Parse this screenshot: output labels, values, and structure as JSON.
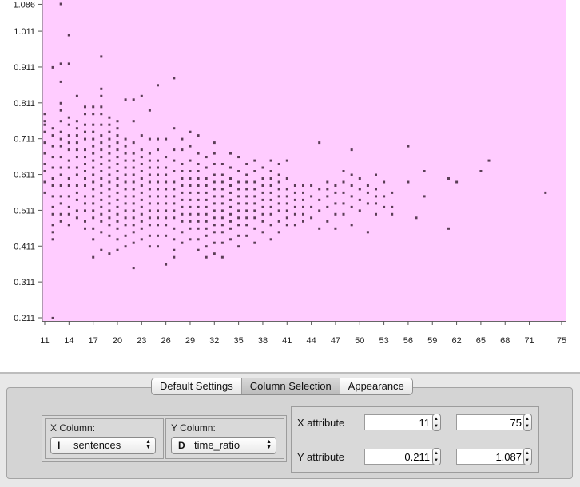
{
  "chart_data": {
    "type": "scatter",
    "title": "",
    "xlabel": "",
    "ylabel": "",
    "xlim": [
      11,
      75
    ],
    "ylim": [
      0.211,
      1.087
    ],
    "x_ticks": [
      "11",
      "14",
      "17",
      "20",
      "23",
      "26",
      "29",
      "32",
      "35",
      "38",
      "41",
      "44",
      "47",
      "50",
      "53",
      "56",
      "59",
      "62",
      "65",
      "68",
      "71",
      "75"
    ],
    "y_ticks": [
      "0.211",
      "0.311",
      "0.411",
      "0.511",
      "0.611",
      "0.711",
      "0.811",
      "0.911",
      "1.011",
      "1.086"
    ],
    "background_color": "#ffccff",
    "point_color": "#5a3d55",
    "grid": false,
    "columns": [
      {
        "x": 11,
        "y": [
          0.56,
          0.59,
          0.62,
          0.64,
          0.67,
          0.7,
          0.73,
          0.75,
          0.76,
          0.78
        ]
      },
      {
        "x": 12,
        "y": [
          0.21,
          0.43,
          0.45,
          0.47,
          0.5,
          0.52,
          0.55,
          0.58,
          0.6,
          0.63,
          0.66,
          0.69,
          0.72,
          0.74,
          0.91
        ]
      },
      {
        "x": 13,
        "y": [
          0.48,
          0.5,
          0.53,
          0.55,
          0.58,
          0.61,
          0.63,
          0.66,
          0.69,
          0.71,
          0.73,
          0.76,
          0.79,
          0.81,
          0.87,
          0.92,
          1.087
        ]
      },
      {
        "x": 14,
        "y": [
          0.47,
          0.5,
          0.52,
          0.55,
          0.58,
          0.6,
          0.63,
          0.65,
          0.68,
          0.7,
          0.72,
          0.75,
          0.77,
          0.92,
          1.0
        ]
      },
      {
        "x": 15,
        "y": [
          0.49,
          0.51,
          0.54,
          0.56,
          0.58,
          0.61,
          0.63,
          0.66,
          0.68,
          0.7,
          0.72,
          0.74,
          0.76,
          0.83
        ]
      },
      {
        "x": 16,
        "y": [
          0.46,
          0.48,
          0.51,
          0.53,
          0.55,
          0.58,
          0.6,
          0.62,
          0.64,
          0.66,
          0.68,
          0.71,
          0.73,
          0.75,
          0.78,
          0.8
        ]
      },
      {
        "x": 17,
        "y": [
          0.38,
          0.43,
          0.46,
          0.49,
          0.51,
          0.53,
          0.55,
          0.57,
          0.59,
          0.61,
          0.63,
          0.65,
          0.67,
          0.69,
          0.71,
          0.73,
          0.75,
          0.78,
          0.8
        ]
      },
      {
        "x": 18,
        "y": [
          0.4,
          0.45,
          0.48,
          0.5,
          0.52,
          0.54,
          0.56,
          0.58,
          0.6,
          0.62,
          0.64,
          0.66,
          0.68,
          0.7,
          0.72,
          0.75,
          0.78,
          0.8,
          0.83,
          0.85,
          0.94
        ]
      },
      {
        "x": 19,
        "y": [
          0.39,
          0.44,
          0.47,
          0.49,
          0.51,
          0.53,
          0.55,
          0.57,
          0.59,
          0.61,
          0.63,
          0.65,
          0.67,
          0.69,
          0.71,
          0.73,
          0.75,
          0.77
        ]
      },
      {
        "x": 20,
        "y": [
          0.4,
          0.43,
          0.46,
          0.48,
          0.5,
          0.52,
          0.54,
          0.56,
          0.58,
          0.6,
          0.62,
          0.64,
          0.66,
          0.68,
          0.7,
          0.72,
          0.74,
          0.76
        ]
      },
      {
        "x": 21,
        "y": [
          0.41,
          0.44,
          0.47,
          0.49,
          0.51,
          0.53,
          0.55,
          0.57,
          0.59,
          0.61,
          0.63,
          0.65,
          0.67,
          0.69,
          0.71,
          0.82
        ]
      },
      {
        "x": 22,
        "y": [
          0.35,
          0.42,
          0.45,
          0.47,
          0.49,
          0.51,
          0.53,
          0.55,
          0.57,
          0.59,
          0.61,
          0.63,
          0.65,
          0.67,
          0.7,
          0.76,
          0.82
        ]
      },
      {
        "x": 23,
        "y": [
          0.43,
          0.46,
          0.48,
          0.5,
          0.52,
          0.54,
          0.56,
          0.58,
          0.6,
          0.62,
          0.64,
          0.66,
          0.68,
          0.72,
          0.83
        ]
      },
      {
        "x": 24,
        "y": [
          0.41,
          0.44,
          0.47,
          0.49,
          0.51,
          0.53,
          0.55,
          0.57,
          0.59,
          0.61,
          0.63,
          0.65,
          0.67,
          0.71,
          0.79
        ]
      },
      {
        "x": 25,
        "y": [
          0.41,
          0.44,
          0.47,
          0.49,
          0.51,
          0.53,
          0.55,
          0.57,
          0.59,
          0.61,
          0.63,
          0.65,
          0.68,
          0.71,
          0.86
        ]
      },
      {
        "x": 26,
        "y": [
          0.36,
          0.44,
          0.47,
          0.49,
          0.51,
          0.53,
          0.55,
          0.57,
          0.59,
          0.61,
          0.63,
          0.66,
          0.71
        ]
      },
      {
        "x": 27,
        "y": [
          0.38,
          0.4,
          0.43,
          0.46,
          0.49,
          0.51,
          0.53,
          0.55,
          0.57,
          0.59,
          0.62,
          0.65,
          0.68,
          0.74,
          0.88
        ]
      },
      {
        "x": 28,
        "y": [
          0.42,
          0.45,
          0.48,
          0.5,
          0.52,
          0.54,
          0.56,
          0.58,
          0.6,
          0.62,
          0.64,
          0.68,
          0.71
        ]
      },
      {
        "x": 29,
        "y": [
          0.43,
          0.46,
          0.48,
          0.5,
          0.52,
          0.54,
          0.56,
          0.58,
          0.6,
          0.62,
          0.65,
          0.69,
          0.73
        ]
      },
      {
        "x": 30,
        "y": [
          0.4,
          0.43,
          0.46,
          0.48,
          0.5,
          0.52,
          0.54,
          0.56,
          0.58,
          0.6,
          0.62,
          0.64,
          0.67,
          0.72
        ]
      },
      {
        "x": 31,
        "y": [
          0.38,
          0.41,
          0.44,
          0.46,
          0.48,
          0.5,
          0.52,
          0.54,
          0.56,
          0.58,
          0.6,
          0.63,
          0.66
        ]
      },
      {
        "x": 32,
        "y": [
          0.39,
          0.42,
          0.45,
          0.47,
          0.49,
          0.51,
          0.53,
          0.55,
          0.57,
          0.59,
          0.61,
          0.64,
          0.67,
          0.7
        ]
      },
      {
        "x": 33,
        "y": [
          0.38,
          0.42,
          0.45,
          0.47,
          0.49,
          0.51,
          0.53,
          0.55,
          0.57,
          0.59,
          0.61,
          0.64
        ]
      },
      {
        "x": 34,
        "y": [
          0.43,
          0.46,
          0.48,
          0.5,
          0.52,
          0.54,
          0.56,
          0.58,
          0.6,
          0.63,
          0.67
        ]
      },
      {
        "x": 35,
        "y": [
          0.41,
          0.44,
          0.47,
          0.49,
          0.51,
          0.53,
          0.55,
          0.57,
          0.59,
          0.62,
          0.66
        ]
      },
      {
        "x": 36,
        "y": [
          0.44,
          0.47,
          0.49,
          0.51,
          0.53,
          0.55,
          0.57,
          0.59,
          0.61,
          0.64
        ]
      },
      {
        "x": 37,
        "y": [
          0.42,
          0.46,
          0.49,
          0.51,
          0.53,
          0.55,
          0.57,
          0.59,
          0.62,
          0.65
        ]
      },
      {
        "x": 38,
        "y": [
          0.45,
          0.48,
          0.5,
          0.52,
          0.54,
          0.56,
          0.58,
          0.6,
          0.63
        ]
      },
      {
        "x": 39,
        "y": [
          0.43,
          0.47,
          0.5,
          0.52,
          0.54,
          0.56,
          0.58,
          0.6,
          0.62,
          0.65
        ]
      },
      {
        "x": 40,
        "y": [
          0.45,
          0.48,
          0.51,
          0.53,
          0.55,
          0.57,
          0.59,
          0.61,
          0.64
        ]
      },
      {
        "x": 41,
        "y": [
          0.47,
          0.49,
          0.51,
          0.53,
          0.55,
          0.57,
          0.6,
          0.65
        ]
      },
      {
        "x": 42,
        "y": [
          0.47,
          0.5,
          0.52,
          0.54,
          0.56,
          0.58
        ]
      },
      {
        "x": 43,
        "y": [
          0.48,
          0.5,
          0.52,
          0.54,
          0.56,
          0.58
        ]
      },
      {
        "x": 44,
        "y": [
          0.49,
          0.52,
          0.55,
          0.58
        ]
      },
      {
        "x": 45,
        "y": [
          0.46,
          0.51,
          0.54,
          0.57,
          0.7
        ]
      },
      {
        "x": 46,
        "y": [
          0.48,
          0.52,
          0.55,
          0.57,
          0.59
        ]
      },
      {
        "x": 47,
        "y": [
          0.46,
          0.5,
          0.53,
          0.56,
          0.58
        ]
      },
      {
        "x": 48,
        "y": [
          0.5,
          0.53,
          0.56,
          0.59,
          0.62
        ]
      },
      {
        "x": 49,
        "y": [
          0.47,
          0.52,
          0.55,
          0.58,
          0.61,
          0.68
        ]
      },
      {
        "x": 50,
        "y": [
          0.51,
          0.54,
          0.57,
          0.6
        ]
      },
      {
        "x": 51,
        "y": [
          0.45,
          0.53,
          0.56,
          0.58
        ]
      },
      {
        "x": 52,
        "y": [
          0.5,
          0.53,
          0.55,
          0.57,
          0.61
        ]
      },
      {
        "x": 53,
        "y": [
          0.52,
          0.55,
          0.59
        ]
      },
      {
        "x": 54,
        "y": [
          0.5,
          0.52,
          0.56
        ]
      },
      {
        "x": 56,
        "y": [
          0.59,
          0.69
        ]
      },
      {
        "x": 57,
        "y": [
          0.49
        ]
      },
      {
        "x": 58,
        "y": [
          0.55,
          0.62
        ]
      },
      {
        "x": 61,
        "y": [
          0.46,
          0.6
        ]
      },
      {
        "x": 62,
        "y": [
          0.59
        ]
      },
      {
        "x": 65,
        "y": [
          0.62
        ]
      },
      {
        "x": 66,
        "y": [
          0.65
        ]
      },
      {
        "x": 73,
        "y": [
          0.56
        ]
      }
    ]
  },
  "tabs": [
    {
      "label": "Default Settings",
      "active": false
    },
    {
      "label": "Column Selection",
      "active": true
    },
    {
      "label": "Appearance",
      "active": false
    }
  ],
  "x_column": {
    "title": "X Column:",
    "type_badge": "I",
    "value": "sentences"
  },
  "y_column": {
    "title": "Y Column:",
    "type_badge": "D",
    "value": "time_ratio"
  },
  "x_attribute": {
    "label": "X attribute",
    "min": "11",
    "max": "75"
  },
  "y_attribute": {
    "label": "Y attribute",
    "min": "0.211",
    "max": "1.087"
  }
}
